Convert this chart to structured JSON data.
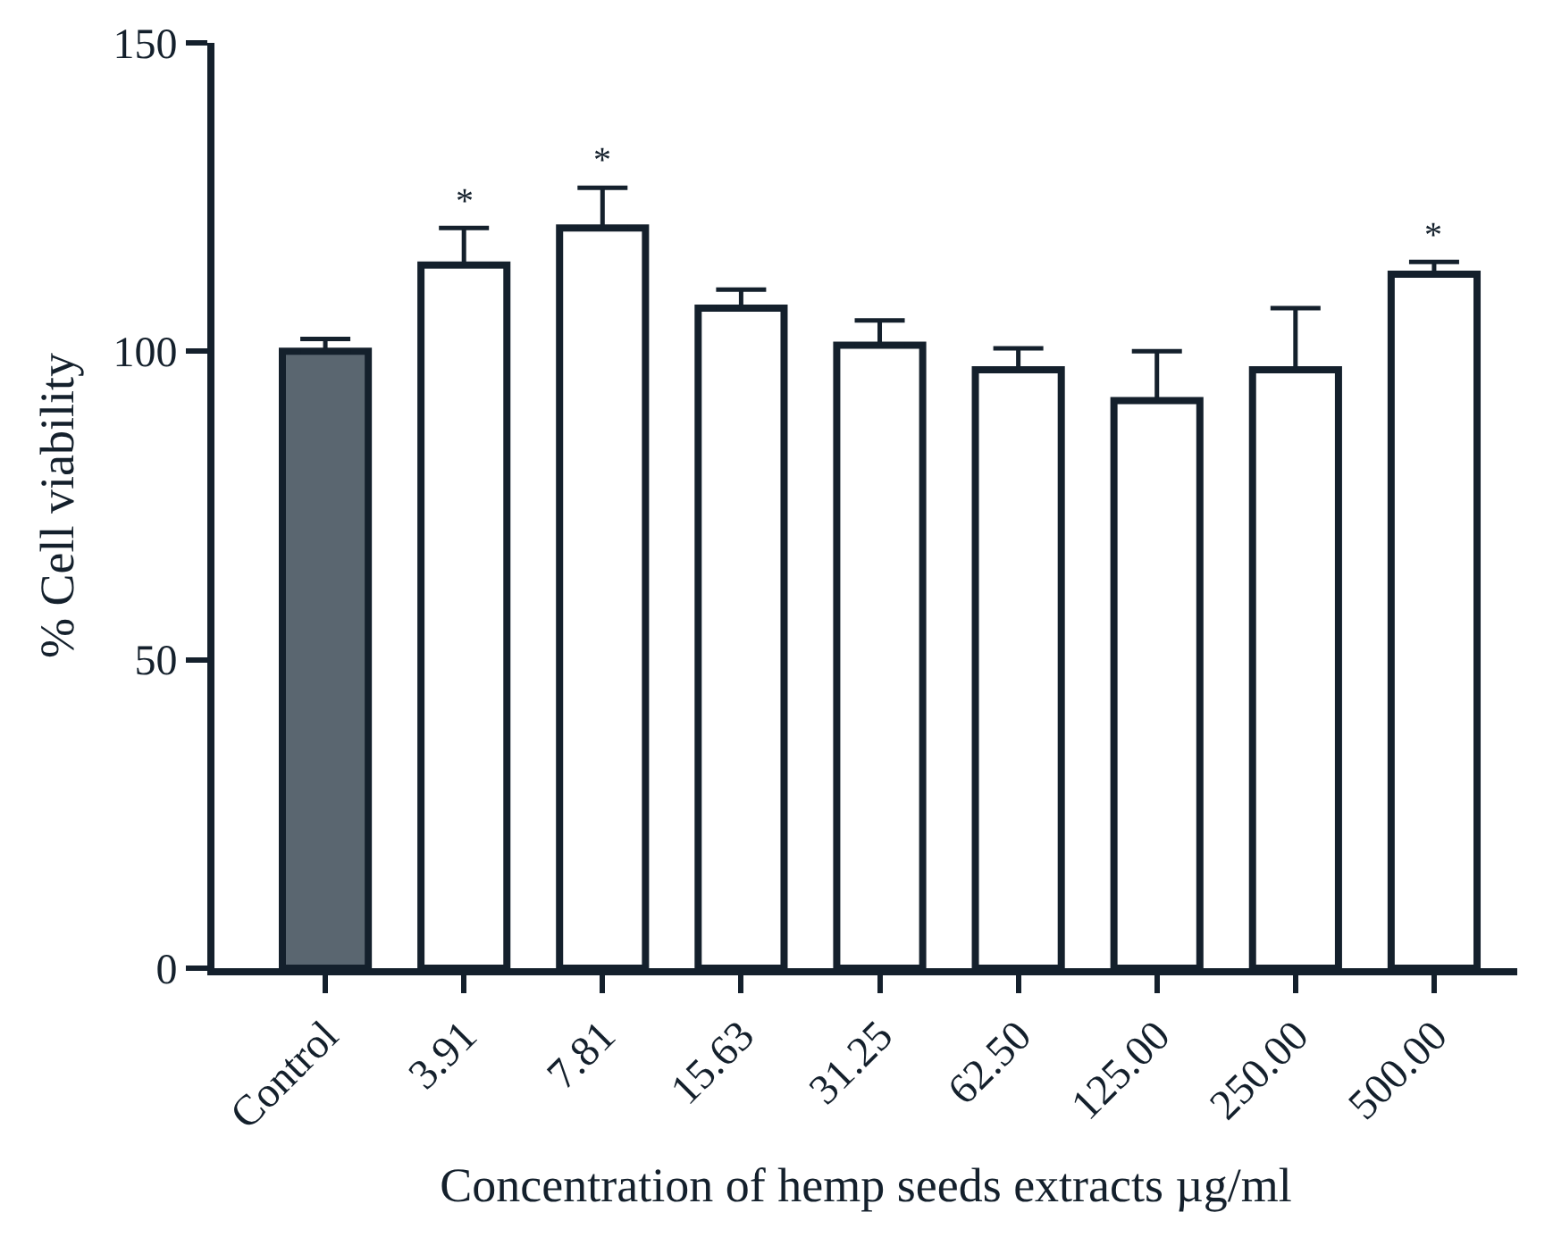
{
  "chart_data": {
    "type": "bar",
    "xlabel": "Concentration of hemp seeds extracts µg/ml",
    "ylabel": "% Cell viability",
    "categories": [
      "Control",
      "3.91",
      "7.81",
      "15.63",
      "31.25",
      "62.50",
      "125.00",
      "250.00",
      "500.00"
    ],
    "values": [
      100,
      114,
      120,
      107,
      101,
      97,
      92,
      97,
      112.5
    ],
    "errors": [
      [
        100,
        102
      ],
      [
        114,
        120
      ],
      [
        120,
        126.5
      ],
      [
        107,
        110
      ],
      [
        101,
        105
      ],
      [
        97,
        100.5
      ],
      [
        92,
        100
      ],
      [
        97,
        107
      ],
      [
        112.5,
        114.5
      ]
    ],
    "colors": [
      "#5a6670",
      "#ffffff",
      "#ffffff",
      "#ffffff",
      "#ffffff",
      "#ffffff",
      "#ffffff",
      "#ffffff",
      "#ffffff"
    ],
    "ylim": [
      0,
      150
    ],
    "yticks": [
      0,
      50,
      100,
      150
    ],
    "annotations": [
      {
        "text": "*",
        "x": "3.91",
        "y": 120
      },
      {
        "text": "*",
        "x": "7.81",
        "y": 126.5
      },
      {
        "text": "*",
        "x": "500.00",
        "y": 114.5
      }
    ]
  }
}
